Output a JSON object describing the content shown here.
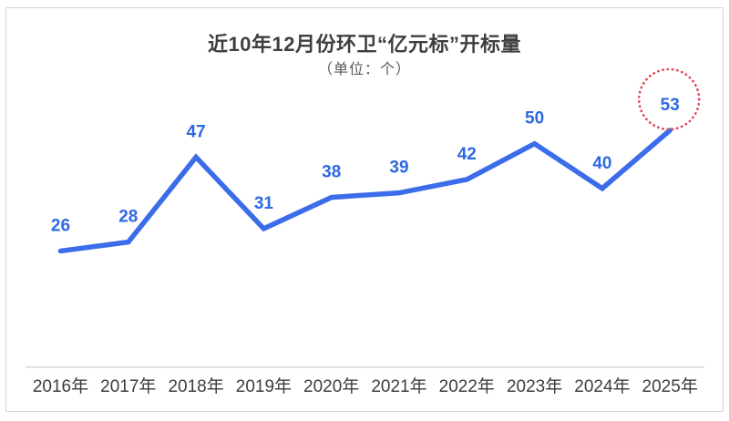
{
  "chart_data": {
    "type": "line",
    "title": "近10年12月份环卫“亿元标”开标量",
    "subtitle": "（单位：个）",
    "categories": [
      "2016年",
      "2017年",
      "2018年",
      "2019年",
      "2020年",
      "2021年",
      "2022年",
      "2023年",
      "2024年",
      "2025年"
    ],
    "values": [
      26,
      28,
      47,
      31,
      38,
      39,
      42,
      50,
      40,
      53
    ],
    "ylim": [
      0,
      55
    ],
    "xlabel": "",
    "ylabel": "",
    "grid": false,
    "legend": false,
    "y_axis_visible": false,
    "value_labels_position": "above-points",
    "highlight": {
      "index": 9,
      "value": 53,
      "style": "red-dotted-circle"
    },
    "colors": {
      "line": "#3b6cea",
      "value_label": "#2d69e4",
      "dropline": "#5b85ec",
      "axis": "#e2e2e2",
      "tick_label": "#3d3d3d",
      "title": "#3f3f3f",
      "subtitle": "#595959",
      "highlight_circle": "#e2495b"
    }
  }
}
